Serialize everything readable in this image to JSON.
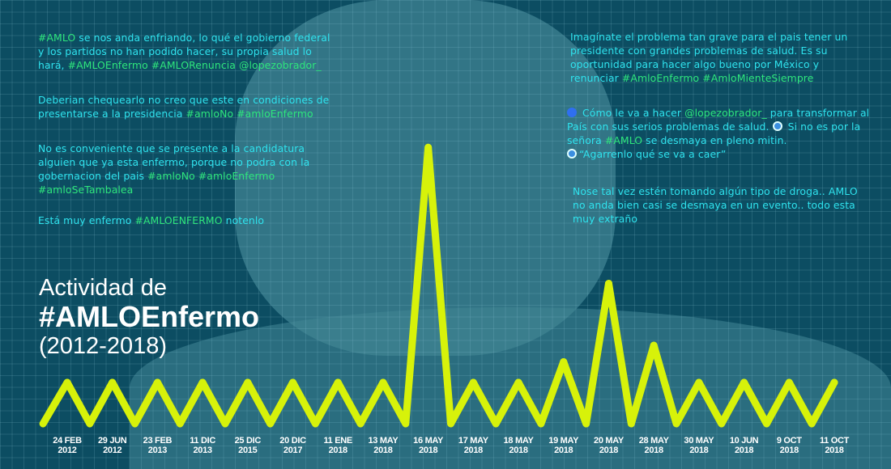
{
  "chart_data": {
    "type": "line",
    "title": "Actividad de",
    "hashtag": "#AMLOEnfermo",
    "subtitle": "(2012-2018)",
    "categories": [
      [
        "24 FEB",
        "2012"
      ],
      [
        "29 JUN",
        "2012"
      ],
      [
        "23 FEB",
        "2013"
      ],
      [
        "11 DIC",
        "2013"
      ],
      [
        "25 DIC",
        "2015"
      ],
      [
        "20 DIC",
        "2017"
      ],
      [
        "11 ENE",
        "2018"
      ],
      [
        "13 MAY",
        "2018"
      ],
      [
        "16 MAY",
        "2018"
      ],
      [
        "17 MAY",
        "2018"
      ],
      [
        "18 MAY",
        "2018"
      ],
      [
        "19 MAY",
        "2018"
      ],
      [
        "20 MAY",
        "2018"
      ],
      [
        "28 MAY",
        "2018"
      ],
      [
        "30 MAY",
        "2018"
      ],
      [
        "10 JUN",
        "2018"
      ],
      [
        "9 OCT",
        "2018"
      ],
      [
        "11 OCT",
        "2018"
      ]
    ],
    "values": [
      1,
      1,
      1,
      1,
      1,
      1,
      1,
      1,
      6.7,
      1,
      1,
      1.5,
      3.4,
      1.9,
      1,
      1,
      1,
      1
    ],
    "baseline": 0,
    "ylim": [
      0,
      7
    ],
    "line_color": "#d7f20a"
  },
  "tweets": [
    [
      {
        "t": "#AMLO",
        "h": true
      },
      {
        "t": " se nos anda enfriando, lo qué el gobierno federal y los partidos no han podido hacer, su propia salud lo hará, "
      },
      {
        "t": "#AMLOEnfermo #AMLORenuncia @lopezobrador_",
        "h": true
      }
    ],
    [
      {
        "t": "Deberian chequearlo no creo que este en condiciones de presentarse a la presidencia "
      },
      {
        "t": "#amloNo #amloEnfermo",
        "h": true
      }
    ],
    [
      {
        "t": "No es conveniente que se presente a la candidatura alguien que ya esta enfermo, porque no podra con la gobernacion del pais "
      },
      {
        "t": "#amloNo #amloEnfermo #amloSeTambalea",
        "h": true
      }
    ],
    [
      {
        "t": "Está muy enfermo "
      },
      {
        "t": "#AMLOENFERMO",
        "h": true
      },
      {
        "t": " notenlo"
      }
    ],
    [
      {
        "t": "Imagínate el problema tan grave para el pais tener un presidente con grandes problemas de salud. Es su oportunidad para hacer algo bueno por México y renunciar "
      },
      {
        "t": "#AmloEnfermo #AmloMienteSiempre",
        "h": true
      }
    ],
    [
      {
        "e": "blue"
      },
      {
        "t": " Cómo le va a hacer "
      },
      {
        "t": "@lopezobrador_",
        "h": true
      },
      {
        "t": " para transformar al País con sus serios problemas de salud. "
      },
      {
        "e": "cycle"
      },
      {
        "t": " Si no es por la señora "
      },
      {
        "t": "#AMLO",
        "h": true
      },
      {
        "t": " se desmaya en pleno mitin. "
      },
      {
        "br": true
      },
      {
        "e": "cycle"
      },
      {
        "t": "“Agarrenlo qué se va a caer”"
      }
    ],
    [
      {
        "t": "Nose tal vez estén tomando algún tipo de droga.. AMLO no anda bien casi se desmaya en un evento.. todo esta muy extraño"
      }
    ]
  ]
}
